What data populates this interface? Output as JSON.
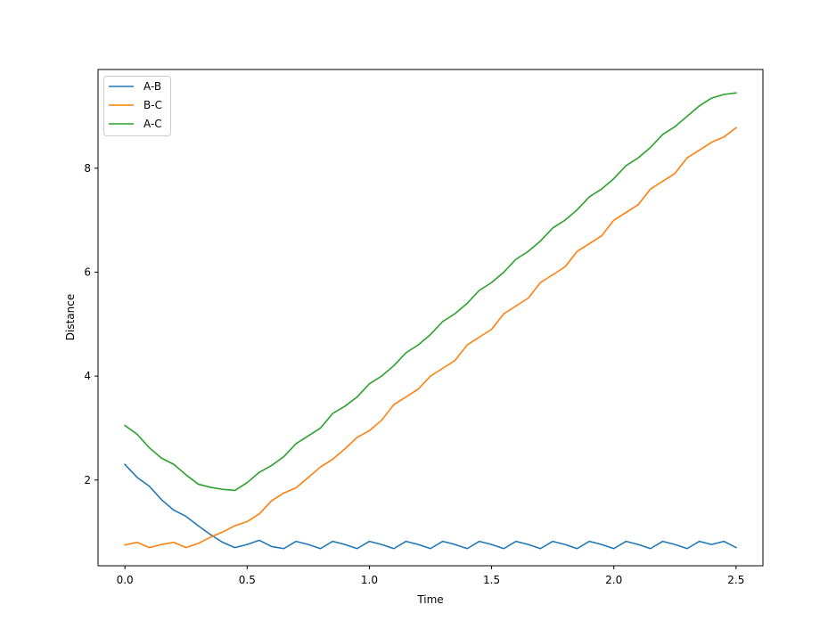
{
  "chart_data": {
    "type": "line",
    "title": "",
    "xlabel": "Time",
    "ylabel": "Distance",
    "xlim": [
      -0.11,
      2.61
    ],
    "ylim": [
      0.35,
      9.9
    ],
    "xticks": [
      0.0,
      0.5,
      1.0,
      1.5,
      2.0,
      2.5
    ],
    "xtick_labels": [
      "0.0",
      "0.5",
      "1.0",
      "1.5",
      "2.0",
      "2.5"
    ],
    "yticks": [
      2,
      4,
      6,
      8
    ],
    "ytick_labels": [
      "2",
      "4",
      "6",
      "8"
    ],
    "grid": false,
    "legend": "top-left",
    "series": [
      {
        "name": "A-B",
        "color": "#1f77b4",
        "x": [
          0.0,
          0.05,
          0.1,
          0.15,
          0.2,
          0.25,
          0.3,
          0.35,
          0.4,
          0.45,
          0.5,
          0.55,
          0.6,
          0.65,
          0.7,
          0.75,
          0.8,
          0.85,
          0.9,
          0.95,
          1.0,
          1.05,
          1.1,
          1.15,
          1.2,
          1.25,
          1.3,
          1.35,
          1.4,
          1.45,
          1.5,
          1.55,
          1.6,
          1.65,
          1.7,
          1.75,
          1.8,
          1.85,
          1.9,
          1.95,
          2.0,
          2.05,
          2.1,
          2.15,
          2.2,
          2.25,
          2.3,
          2.35,
          2.4,
          2.45,
          2.5
        ],
        "y": [
          2.3,
          2.05,
          1.88,
          1.62,
          1.42,
          1.3,
          1.12,
          0.95,
          0.8,
          0.7,
          0.76,
          0.84,
          0.72,
          0.68,
          0.82,
          0.76,
          0.68,
          0.82,
          0.76,
          0.68,
          0.82,
          0.76,
          0.68,
          0.82,
          0.76,
          0.68,
          0.82,
          0.76,
          0.68,
          0.82,
          0.76,
          0.68,
          0.82,
          0.76,
          0.68,
          0.82,
          0.76,
          0.68,
          0.82,
          0.76,
          0.68,
          0.82,
          0.76,
          0.68,
          0.82,
          0.76,
          0.68,
          0.82,
          0.76,
          0.82,
          0.7
        ]
      },
      {
        "name": "B-C",
        "color": "#ff7f0e",
        "x": [
          0.0,
          0.05,
          0.1,
          0.15,
          0.2,
          0.25,
          0.3,
          0.35,
          0.4,
          0.45,
          0.5,
          0.55,
          0.6,
          0.65,
          0.7,
          0.75,
          0.8,
          0.85,
          0.9,
          0.95,
          1.0,
          1.05,
          1.1,
          1.15,
          1.2,
          1.25,
          1.3,
          1.35,
          1.4,
          1.45,
          1.5,
          1.55,
          1.6,
          1.65,
          1.7,
          1.75,
          1.8,
          1.85,
          1.9,
          1.95,
          2.0,
          2.05,
          2.1,
          2.15,
          2.2,
          2.25,
          2.3,
          2.35,
          2.4,
          2.45,
          2.5
        ],
        "y": [
          0.75,
          0.8,
          0.7,
          0.76,
          0.8,
          0.7,
          0.78,
          0.9,
          1.0,
          1.12,
          1.2,
          1.35,
          1.6,
          1.75,
          1.85,
          2.05,
          2.25,
          2.4,
          2.6,
          2.82,
          2.95,
          3.15,
          3.45,
          3.6,
          3.75,
          4.0,
          4.15,
          4.3,
          4.6,
          4.75,
          4.9,
          5.2,
          5.35,
          5.5,
          5.8,
          5.95,
          6.1,
          6.4,
          6.55,
          6.7,
          7.0,
          7.15,
          7.3,
          7.6,
          7.75,
          7.9,
          8.2,
          8.35,
          8.5,
          8.6,
          8.78
        ]
      },
      {
        "name": "A-C",
        "color": "#2ca02c",
        "x": [
          0.0,
          0.05,
          0.1,
          0.15,
          0.2,
          0.25,
          0.3,
          0.35,
          0.4,
          0.45,
          0.5,
          0.55,
          0.6,
          0.65,
          0.7,
          0.75,
          0.8,
          0.85,
          0.9,
          0.95,
          1.0,
          1.05,
          1.1,
          1.15,
          1.2,
          1.25,
          1.3,
          1.35,
          1.4,
          1.45,
          1.5,
          1.55,
          1.6,
          1.65,
          1.7,
          1.75,
          1.8,
          1.85,
          1.9,
          1.95,
          2.0,
          2.05,
          2.1,
          2.15,
          2.2,
          2.25,
          2.3,
          2.35,
          2.4,
          2.45,
          2.5
        ],
        "y": [
          3.05,
          2.88,
          2.62,
          2.42,
          2.3,
          2.1,
          1.92,
          1.86,
          1.82,
          1.8,
          1.95,
          2.15,
          2.28,
          2.45,
          2.7,
          2.85,
          3.0,
          3.28,
          3.42,
          3.6,
          3.85,
          4.0,
          4.2,
          4.45,
          4.6,
          4.8,
          5.05,
          5.2,
          5.4,
          5.65,
          5.8,
          6.0,
          6.25,
          6.4,
          6.6,
          6.85,
          7.0,
          7.2,
          7.45,
          7.6,
          7.8,
          8.05,
          8.2,
          8.4,
          8.65,
          8.8,
          9.0,
          9.2,
          9.35,
          9.42,
          9.45
        ]
      }
    ]
  }
}
